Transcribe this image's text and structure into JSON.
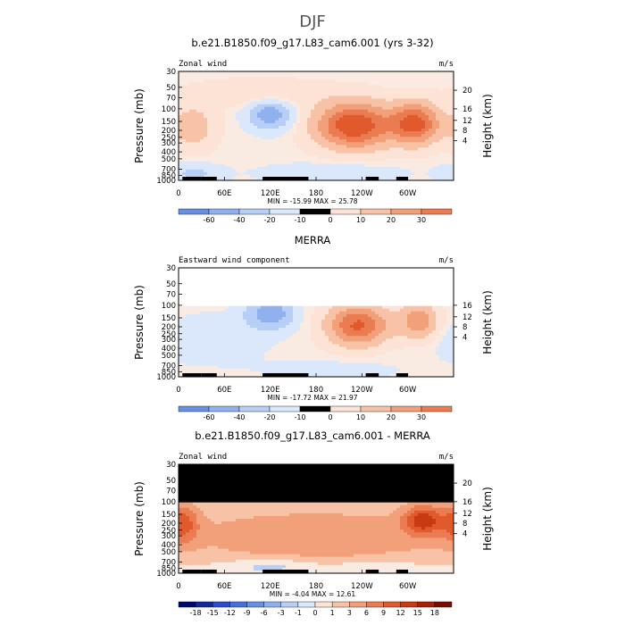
{
  "page": {
    "main_title": "DJF"
  },
  "colors": {
    "pos": [
      "#fde3d6",
      "#f8c2a6",
      "#f2a07a",
      "#eb7c52",
      "#e05a2e",
      "#c93a12",
      "#a52208",
      "#7a0e02"
    ],
    "neg": [
      "#dbe8fb",
      "#b7cff6",
      "#8fb1ee",
      "#6790e4",
      "#4670dc",
      "#2a4fd0",
      "#12299e",
      "#000a6e"
    ],
    "near_zero": "#f9ebe2",
    "mask": "#000000"
  },
  "chart_data": [
    {
      "type": "heatmap",
      "panel_title": "b.e21.B1850.f09_g17.L83_cam6.001 (yrs 3-32)",
      "left_label": "Zonal wind",
      "right_label": "m/s",
      "ylabel": "Pressure (mb)",
      "ylabel_right": "Height (km)",
      "y_ticks": [
        "30",
        "50",
        "70",
        "100",
        "150",
        "200",
        "250",
        "300",
        "400",
        "500",
        "700",
        "850",
        "1000"
      ],
      "y_ticks_right": [
        "20",
        "16",
        "12",
        "8",
        "4"
      ],
      "x_ticks": [
        "0",
        "60E",
        "120E",
        "180",
        "120W",
        "60W"
      ],
      "stats": "MIN = -15.99   MAX =  25.78",
      "levels": [
        "-60",
        "-40",
        "-20",
        "-10",
        "0",
        "10",
        "20",
        "30"
      ],
      "has_top_mask": false,
      "features": [
        {
          "lon": 230,
          "p": 170,
          "value": 25,
          "slon": 35,
          "sp": 0.45
        },
        {
          "lon": 310,
          "p": 160,
          "value": 22,
          "slon": 22,
          "sp": 0.4
        },
        {
          "lon": 20,
          "p": 180,
          "value": 8,
          "slon": 20,
          "sp": 0.45
        },
        {
          "lon": 120,
          "p": 120,
          "value": -14,
          "slon": 20,
          "sp": 0.3
        },
        {
          "lon": 110,
          "p": 60,
          "value": 5,
          "slon": 60,
          "sp": 0.25
        },
        {
          "lon": 200,
          "p": 800,
          "value": -5,
          "slon": 60,
          "sp": 0.2
        },
        {
          "lon": 20,
          "p": 800,
          "value": -6,
          "slon": 25,
          "sp": 0.2
        }
      ]
    },
    {
      "type": "heatmap",
      "panel_title": "MERRA",
      "left_label": "Eastward wind component",
      "right_label": "m/s",
      "ylabel": "Pressure (mb)",
      "ylabel_right": "Height (km)",
      "y_ticks": [
        "30",
        "50",
        "70",
        "100",
        "150",
        "200",
        "250",
        "300",
        "400",
        "500",
        "700",
        "850",
        "1000"
      ],
      "y_ticks_right": [
        "16",
        "12",
        "8",
        "4"
      ],
      "x_ticks": [
        "0",
        "60E",
        "120E",
        "180",
        "120W",
        "60W"
      ],
      "stats": "MIN = -17.72   MAX =  21.97",
      "levels": [
        "-60",
        "-40",
        "-20",
        "-10",
        "0",
        "10",
        "20",
        "30"
      ],
      "has_top_mask": false,
      "blank_above": 100,
      "features": [
        {
          "lon": 235,
          "p": 190,
          "value": 21,
          "slon": 28,
          "sp": 0.4
        },
        {
          "lon": 315,
          "p": 170,
          "value": 14,
          "slon": 18,
          "sp": 0.35
        },
        {
          "lon": 120,
          "p": 130,
          "value": -14,
          "slon": 22,
          "sp": 0.3
        },
        {
          "lon": 40,
          "p": 300,
          "value": -4,
          "slon": 50,
          "sp": 0.45
        },
        {
          "lon": 200,
          "p": 800,
          "value": -3,
          "slon": 60,
          "sp": 0.2
        }
      ]
    },
    {
      "type": "heatmap",
      "panel_title": "b.e21.B1850.f09_g17.L83_cam6.001 - MERRA",
      "left_label": "Zonal wind",
      "right_label": "m/s",
      "ylabel": "Pressure (mb)",
      "ylabel_right": "Height (km)",
      "y_ticks": [
        "30",
        "50",
        "70",
        "100",
        "150",
        "200",
        "250",
        "300",
        "400",
        "500",
        "700",
        "850",
        "1000"
      ],
      "y_ticks_right": [
        "20",
        "16",
        "12",
        "8",
        "4"
      ],
      "x_ticks": [
        "0",
        "60E",
        "120E",
        "180",
        "120W",
        "60W"
      ],
      "stats": "MIN = -4.04   MAX =  12.61",
      "levels": [
        "-18",
        "-15",
        "-12",
        "-9",
        "-6",
        "-3",
        "-1",
        "0",
        "1",
        "3",
        "6",
        "9",
        "12",
        "15",
        "18"
      ],
      "has_top_mask": true,
      "mask_above": 100,
      "features": [
        {
          "lon": 320,
          "p": 180,
          "value": 12,
          "slon": 18,
          "sp": 0.3
        },
        {
          "lon": 5,
          "p": 200,
          "value": 9,
          "slon": 15,
          "sp": 0.4
        },
        {
          "lon": 180,
          "p": 300,
          "value": 5,
          "slon": 150,
          "sp": 0.6
        },
        {
          "lon": 120,
          "p": 800,
          "value": -3,
          "slon": 40,
          "sp": 0.15
        },
        {
          "lon": 250,
          "p": 850,
          "value": -2,
          "slon": 40,
          "sp": 0.15
        }
      ]
    }
  ]
}
